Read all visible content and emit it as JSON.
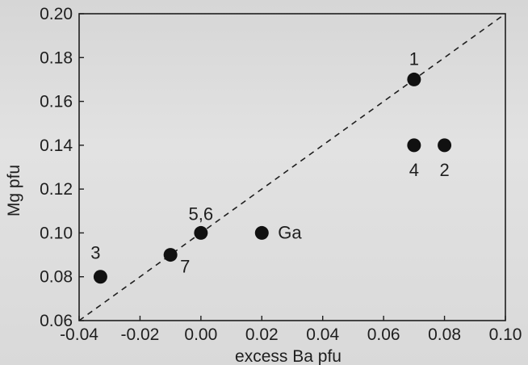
{
  "chart_data": {
    "type": "scatter",
    "title": "",
    "xlabel": "excess Ba pfu",
    "ylabel": "Mg pfu",
    "xlim": [
      -0.04,
      0.1
    ],
    "ylim": [
      0.06,
      0.2
    ],
    "xticks": [
      -0.04,
      -0.02,
      0.0,
      0.02,
      0.04,
      0.06,
      0.08,
      0.1
    ],
    "yticks": [
      0.06,
      0.08,
      0.1,
      0.12,
      0.14,
      0.16,
      0.18,
      0.2
    ],
    "xtick_labels": [
      "-0.04",
      "-0.02",
      "0.00",
      "0.02",
      "0.04",
      "0.06",
      "0.08",
      "0.10"
    ],
    "ytick_labels": [
      "0.06",
      "0.08",
      "0.10",
      "0.12",
      "0.14",
      "0.16",
      "0.18",
      "0.20"
    ],
    "grid": false,
    "points": [
      {
        "label": "1",
        "x": 0.07,
        "y": 0.17
      },
      {
        "label": "4",
        "x": 0.07,
        "y": 0.14
      },
      {
        "label": "2",
        "x": 0.08,
        "y": 0.14
      },
      {
        "label": "5,6",
        "x": 0.0,
        "y": 0.1
      },
      {
        "label": "Ga",
        "x": 0.02,
        "y": 0.1
      },
      {
        "label": "7",
        "x": -0.01,
        "y": 0.09
      },
      {
        "label": "3",
        "x": -0.033,
        "y": 0.08
      }
    ],
    "reference_line": {
      "style": "dashed",
      "from": [
        -0.04,
        0.06
      ],
      "to": [
        0.1,
        0.2
      ]
    }
  }
}
